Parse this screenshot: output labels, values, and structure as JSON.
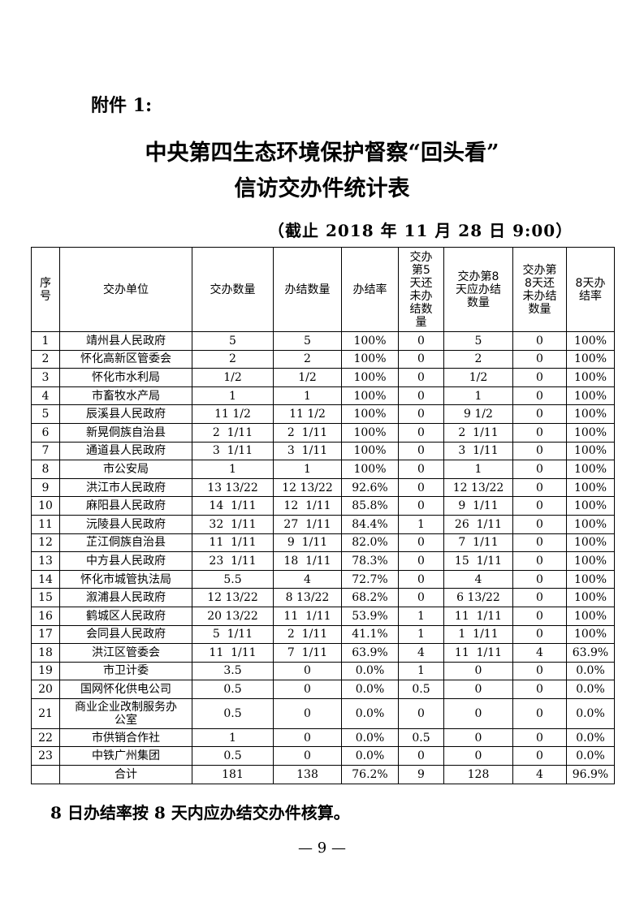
{
  "attachment_label": "附件 1:",
  "title_line1": "中央第四生态环境保护督察“回头看”",
  "title_line2": "信访交办件统计表",
  "date_note": "（截止 2018 年 11 月 28 日 9:00）",
  "table": {
    "headers": [
      "序号",
      "交办单位",
      "交办数量",
      "办结数量",
      "办结率",
      "交办第5天还未办结数量",
      "交办第8天应办结数量",
      "交办第8天还未办结数量",
      "8天办结率"
    ],
    "rows": [
      [
        "1",
        "靖州县人民政府",
        "5",
        "5",
        "100%",
        "0",
        "5",
        "0",
        "100%"
      ],
      [
        "2",
        "怀化高新区管委会",
        "2",
        "2",
        "100%",
        "0",
        "2",
        "0",
        "100%"
      ],
      [
        "3",
        "怀化市水利局",
        "1/2",
        "1/2",
        "100%",
        "0",
        "1/2",
        "0",
        "100%"
      ],
      [
        "4",
        "市畜牧水产局",
        "1",
        "1",
        "100%",
        "0",
        "1",
        "0",
        "100%"
      ],
      [
        "5",
        "辰溪县人民政府",
        "11 1/2",
        "11 1/2",
        "100%",
        "0",
        "9 1/2",
        "0",
        "100%"
      ],
      [
        "6",
        "新晃侗族自治县",
        "2  1/11",
        "2  1/11",
        "100%",
        "0",
        "2  1/11",
        "0",
        "100%"
      ],
      [
        "7",
        "通道县人民政府",
        "3  1/11",
        "3  1/11",
        "100%",
        "0",
        "3  1/11",
        "0",
        "100%"
      ],
      [
        "8",
        "市公安局",
        "1",
        "1",
        "100%",
        "0",
        "1",
        "0",
        "100%"
      ],
      [
        "9",
        "洪江市人民政府",
        "13 13/22",
        "12 13/22",
        "92.6%",
        "0",
        "12 13/22",
        "0",
        "100%"
      ],
      [
        "10",
        "麻阳县人民政府",
        "14  1/11",
        "12  1/11",
        "85.8%",
        "0",
        "9  1/11",
        "0",
        "100%"
      ],
      [
        "11",
        "沅陵县人民政府",
        "32  1/11",
        "27  1/11",
        "84.4%",
        "1",
        "26  1/11",
        "0",
        "100%"
      ],
      [
        "12",
        "芷江侗族自治县",
        "11  1/11",
        "9  1/11",
        "82.0%",
        "0",
        "7  1/11",
        "0",
        "100%"
      ],
      [
        "13",
        "中方县人民政府",
        "23  1/11",
        "18  1/11",
        "78.3%",
        "0",
        "15  1/11",
        "0",
        "100%"
      ],
      [
        "14",
        "怀化市城管执法局",
        "5.5",
        "4",
        "72.7%",
        "0",
        "4",
        "0",
        "100%"
      ],
      [
        "15",
        "溆浦县人民政府",
        "12 13/22",
        "8 13/22",
        "68.2%",
        "0",
        "6 13/22",
        "0",
        "100%"
      ],
      [
        "16",
        "鹤城区人民政府",
        "20 13/22",
        "11  1/11",
        "53.9%",
        "1",
        "11  1/11",
        "0",
        "100%"
      ],
      [
        "17",
        "会同县人民政府",
        "5  1/11",
        "2  1/11",
        "41.1%",
        "1",
        "1  1/11",
        "0",
        "100%"
      ],
      [
        "18",
        "洪江区管委会",
        "11  1/11",
        "7  1/11",
        "63.9%",
        "4",
        "11  1/11",
        "4",
        "63.9%"
      ],
      [
        "19",
        "市卫计委",
        "3.5",
        "0",
        "0.0%",
        "1",
        "0",
        "0",
        "0.0%"
      ],
      [
        "20",
        "国网怀化供电公司",
        "0.5",
        "0",
        "0.0%",
        "0.5",
        "0",
        "0",
        "0.0%"
      ],
      [
        "21",
        "商业企业改制服务办公室",
        "0.5",
        "0",
        "0.0%",
        "0",
        "0",
        "0",
        "0.0%"
      ],
      [
        "22",
        "市供销合作社",
        "1",
        "0",
        "0.0%",
        "0.5",
        "0",
        "0",
        "0.0%"
      ],
      [
        "23",
        "中铁广州集团",
        "0.5",
        "0",
        "0.0%",
        "0",
        "0",
        "0",
        "0.0%"
      ],
      [
        "",
        "合计",
        "181",
        "138",
        "76.2%",
        "9",
        "128",
        "4",
        "96.9%"
      ]
    ]
  },
  "footnote": "8 日办结率按 8 天内应办结交办件核算。",
  "page_number": "— 9 —"
}
